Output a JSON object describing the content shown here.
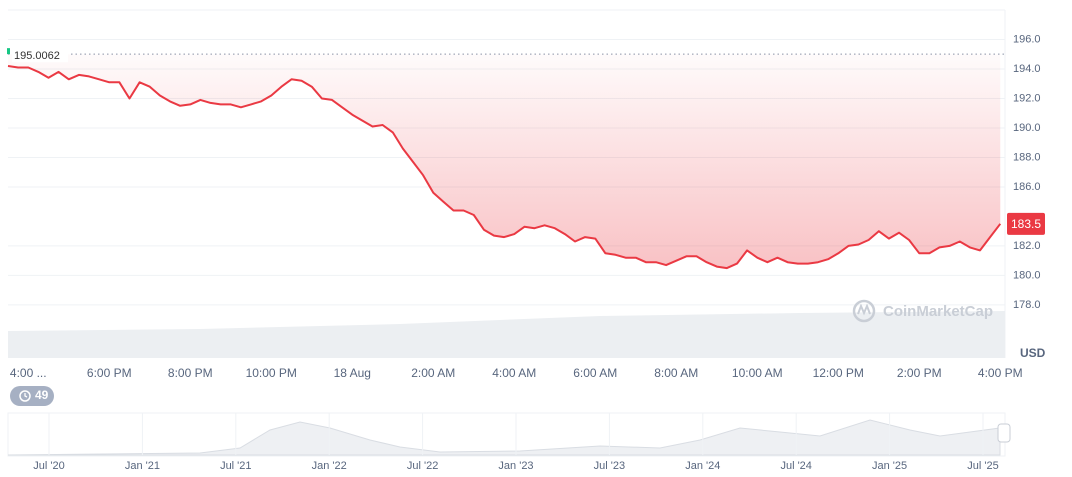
{
  "chart_data": {
    "type": "line",
    "color": "#ea3943",
    "categories": [
      null,
      null,
      "4:00 ...",
      null,
      null,
      null,
      null,
      null,
      null,
      null,
      "6:00 PM",
      null,
      null,
      null,
      null,
      null,
      null,
      null,
      "8:00 PM",
      null,
      null,
      null,
      null,
      null,
      null,
      null,
      "10:00 PM",
      null,
      null,
      null,
      null,
      null,
      null,
      null,
      "18 Aug",
      null,
      null,
      null,
      null,
      null,
      null,
      null,
      "2:00 AM",
      null,
      null,
      null,
      null,
      null,
      null,
      null,
      "4:00 AM",
      null,
      null,
      null,
      null,
      null,
      null,
      null,
      "6:00 AM",
      null,
      null,
      null,
      null,
      null,
      null,
      null,
      "8:00 AM",
      null,
      null,
      null,
      null,
      null,
      null,
      null,
      "10:00 AM",
      null,
      null,
      null,
      null,
      null,
      null,
      null,
      "12:00 PM",
      null,
      null,
      null,
      null,
      null,
      null,
      null,
      "2:00 PM",
      null,
      null,
      null,
      null,
      null,
      null,
      null,
      "4:00 PM"
    ],
    "values": [
      194.2,
      194.1,
      194.1,
      193.8,
      193.4,
      193.8,
      193.3,
      193.6,
      193.5,
      193.3,
      193.1,
      193.1,
      192.0,
      193.1,
      192.8,
      192.2,
      191.8,
      191.5,
      191.6,
      191.9,
      191.7,
      191.6,
      191.6,
      191.4,
      191.6,
      191.8,
      192.2,
      192.8,
      193.3,
      193.2,
      192.8,
      192.0,
      191.9,
      191.4,
      190.9,
      190.5,
      190.1,
      190.2,
      189.7,
      188.6,
      187.7,
      186.8,
      185.6,
      185.0,
      184.4,
      184.4,
      184.1,
      183.1,
      182.7,
      182.6,
      182.8,
      183.3,
      183.2,
      183.4,
      183.2,
      182.8,
      182.3,
      182.6,
      182.5,
      181.5,
      181.4,
      181.2,
      181.2,
      180.9,
      180.9,
      180.7,
      181.0,
      181.3,
      181.3,
      180.9,
      180.6,
      180.5,
      180.8,
      181.7,
      181.2,
      180.9,
      181.2,
      180.9,
      180.8,
      180.8,
      180.9,
      181.1,
      181.5,
      182.0,
      182.1,
      182.4,
      183.0,
      182.5,
      182.9,
      182.4,
      181.5,
      181.5,
      181.9,
      182.0,
      182.3,
      181.9,
      181.7,
      182.6,
      183.5
    ],
    "ylim": [
      174.4,
      198
    ],
    "yticks": [
      {
        "value": 178,
        "label": "178.0"
      },
      {
        "value": 180,
        "label": "180.0"
      },
      {
        "value": 182,
        "label": "182.0"
      },
      {
        "value": 186,
        "label": "186.0"
      },
      {
        "value": 188,
        "label": "188.0"
      },
      {
        "value": 190,
        "label": "190.0"
      },
      {
        "value": 192,
        "label": "192.0"
      },
      {
        "value": 194,
        "label": "194.0"
      },
      {
        "value": 196,
        "label": "196.0"
      }
    ],
    "grid": true,
    "reference_price": 195.0062,
    "current_price": 183.5,
    "unit": "USD",
    "watermark": "CoinMarketCap"
  },
  "events": 49,
  "navigator": {
    "labels": [
      "Jul '20",
      "Jan '21",
      "Jul '21",
      "Jan '22",
      "Jul '22",
      "Jan '23",
      "Jul '23",
      "Jan '24",
      "Jul '24",
      "Jan '25",
      "Jul '25"
    ]
  }
}
